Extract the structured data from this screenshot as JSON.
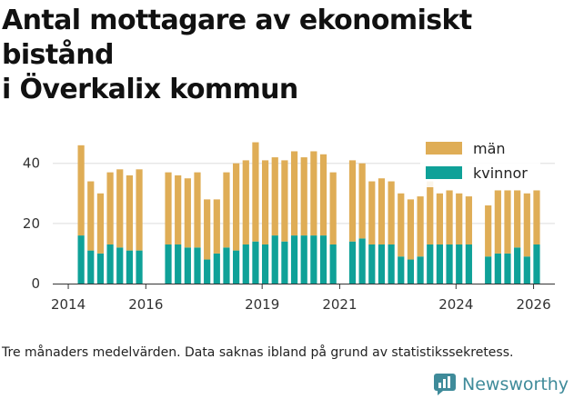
{
  "title_line1": "Antal mottagare av ekonomiskt bistånd",
  "title_line2": "i Överkalix kommun",
  "footnote": "Tre månaders medelvärden. Data saknas ibland på grund av statistikssekretess.",
  "brand": {
    "name": "Newsworthy",
    "icon": "newsworthy-logo-icon"
  },
  "colors": {
    "man": "#dfad56",
    "kvinnor": "#0fa198",
    "grid": "#dddddd",
    "axis": "#333333"
  },
  "chart_data": {
    "type": "bar",
    "stacked": true,
    "title": "Antal mottagare av ekonomiskt bistånd i Överkalix kommun",
    "xlabel": "",
    "ylabel": "",
    "ylim": [
      0,
      52
    ],
    "yticks": [
      0,
      20,
      40
    ],
    "xlim": [
      2013.6,
      2026.55
    ],
    "xticks": [
      {
        "value": 2014,
        "label": "2014"
      },
      {
        "value": 2016,
        "label": "2016"
      },
      {
        "value": 2019,
        "label": "2019"
      },
      {
        "value": 2021,
        "label": "2021"
      },
      {
        "value": 2024,
        "label": "2024"
      },
      {
        "value": 2026,
        "label": "2026"
      }
    ],
    "legend": [
      {
        "key": "man",
        "label": "män"
      },
      {
        "key": "kvinnor",
        "label": "kvinnor"
      }
    ],
    "legend_position": "top-right",
    "x": [
      2014.33,
      2014.58,
      2014.83,
      2015.08,
      2015.33,
      2015.58,
      2015.83,
      2016.58,
      2016.83,
      2017.08,
      2017.33,
      2017.58,
      2017.83,
      2018.08,
      2018.33,
      2018.58,
      2018.83,
      2019.08,
      2019.33,
      2019.58,
      2019.83,
      2020.08,
      2020.33,
      2020.58,
      2020.83,
      2021.33,
      2021.58,
      2021.83,
      2022.08,
      2022.33,
      2022.58,
      2022.83,
      2023.08,
      2023.33,
      2023.58,
      2023.83,
      2024.08,
      2024.33,
      2024.83,
      2025.08,
      2025.33,
      2025.58,
      2025.83,
      2026.08
    ],
    "series": [
      {
        "name": "kvinnor",
        "values": [
          16,
          11,
          10,
          13,
          12,
          11,
          11,
          13,
          13,
          12,
          12,
          8,
          10,
          12,
          11,
          13,
          14,
          13,
          16,
          14,
          16,
          16,
          16,
          16,
          13,
          14,
          15,
          13,
          13,
          13,
          9,
          8,
          9,
          13,
          13,
          13,
          13,
          13,
          9,
          10,
          10,
          12,
          9,
          13
        ]
      },
      {
        "name": "män",
        "values": [
          30,
          23,
          20,
          24,
          26,
          25,
          27,
          24,
          23,
          23,
          25,
          20,
          18,
          25,
          29,
          28,
          33,
          28,
          26,
          27,
          28,
          26,
          28,
          27,
          24,
          27,
          25,
          21,
          22,
          21,
          21,
          20,
          20,
          21,
          17,
          18,
          17,
          16,
          17,
          21,
          21,
          19,
          21,
          18
        ]
      }
    ]
  }
}
